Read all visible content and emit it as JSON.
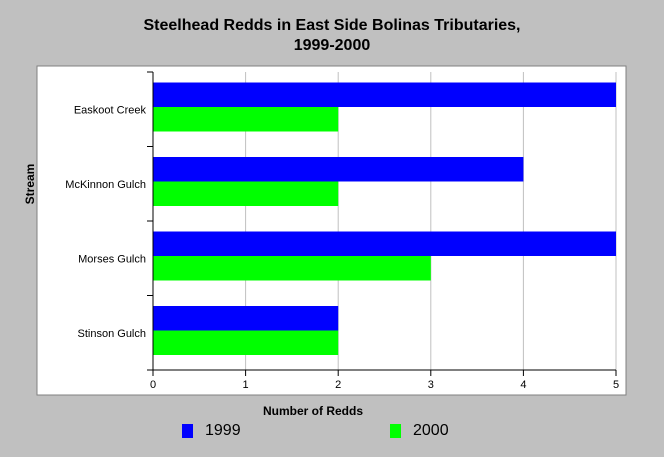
{
  "chart_data": {
    "type": "bar",
    "orientation": "horizontal",
    "title_line1": "Steelhead Redds in East Side Bolinas Tributaries,",
    "title_line2": "1999-2000",
    "xlabel": "Number of Redds",
    "ylabel": "Stream",
    "categories": [
      "Easkoot Creek",
      "McKinnon Gulch",
      "Morses Gulch",
      "Stinson Gulch"
    ],
    "series": [
      {
        "name": "1999",
        "color": "#0000ff",
        "values": [
          5,
          4,
          5,
          2
        ]
      },
      {
        "name": "2000",
        "color": "#00ff00",
        "values": [
          2,
          2,
          3,
          2
        ]
      }
    ],
    "xlim": [
      0,
      5
    ],
    "xticks": [
      0,
      1,
      2,
      3,
      4,
      5
    ],
    "grid": true,
    "legend_position": "bottom"
  }
}
